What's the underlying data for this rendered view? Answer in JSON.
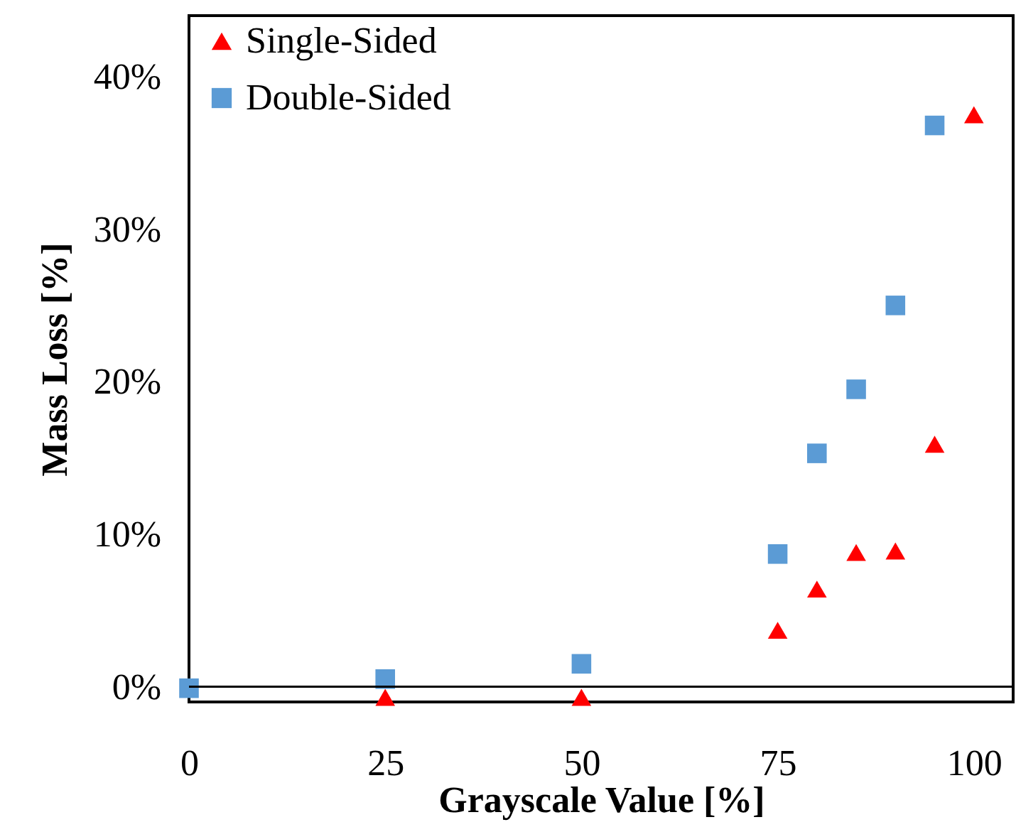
{
  "chart_data": {
    "type": "scatter",
    "xlabel": "Grayscale Value [%]",
    "ylabel": "Mass Loss [%]",
    "series": [
      {
        "name": "Single-Sided",
        "color": "#ff0000",
        "marker": "triangle",
        "x": [
          25,
          50,
          75,
          80,
          85,
          90,
          95,
          100
        ],
        "values": [
          -0.7,
          -0.7,
          3.7,
          6.4,
          8.8,
          8.9,
          15.9,
          37.5
        ]
      },
      {
        "name": "Double-Sided",
        "color": "#5b9bd5",
        "marker": "square",
        "x": [
          0,
          25,
          50,
          75,
          80,
          85,
          90,
          95
        ],
        "values": [
          -0.1,
          0.5,
          1.5,
          8.7,
          15.3,
          19.5,
          25.0,
          36.8
        ]
      }
    ],
    "xlim": [
      0,
      105
    ],
    "xticks": [
      0,
      25,
      50,
      75,
      100
    ],
    "ylim": [
      -1,
      44
    ],
    "yticks": [
      {
        "value": 0,
        "label": "0%"
      },
      {
        "value": 10,
        "label": "10%"
      },
      {
        "value": 20,
        "label": "20%"
      },
      {
        "value": 30,
        "label": "30%"
      },
      {
        "value": 40,
        "label": "40%"
      }
    ],
    "ref_lines": [
      {
        "axis": "y",
        "value": 0,
        "color": "#000000"
      }
    ],
    "grid": false,
    "legend": "top left"
  }
}
